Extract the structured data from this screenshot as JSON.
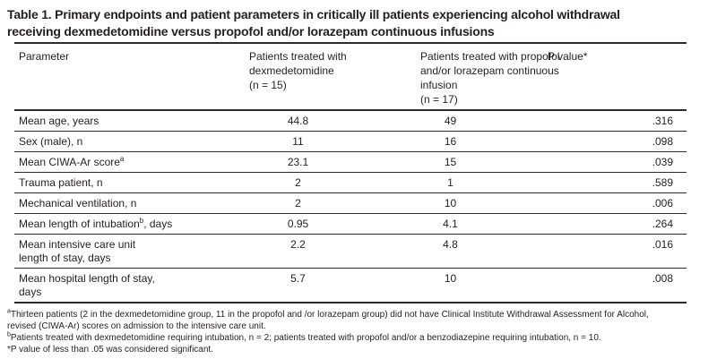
{
  "title": "Table 1. Primary endpoints and patient parameters in critically ill patients experiencing alcohol withdrawal\nreceiving dexmedetomidine versus propofol and/or lorazepam continuous infusions",
  "colors": {
    "text": "#231f20",
    "rule": "#2b2b2b",
    "background": "#ffffff"
  },
  "table": {
    "columns": [
      {
        "label": "Parameter"
      },
      {
        "label": "Patients treated with\ndexmedetomidine\n(n = 15)"
      },
      {
        "label": "Patients treated with propofol\nand/or lorazepam continuous\ninfusion\n(n = 17)"
      },
      {
        "label": "P value*"
      }
    ],
    "rows": [
      {
        "parameter": {
          "text": "Mean age, years",
          "sup": "",
          "suffix": ""
        },
        "dexmedetomidine": "44.8",
        "propofol_lorazepam": "49",
        "p_value": ".316"
      },
      {
        "parameter": {
          "text": "Sex (male), n",
          "sup": "",
          "suffix": ""
        },
        "dexmedetomidine": "11",
        "propofol_lorazepam": "16",
        "p_value": ".098"
      },
      {
        "parameter": {
          "text": "Mean CIWA-Ar score",
          "sup": "a",
          "suffix": ""
        },
        "dexmedetomidine": "23.1",
        "propofol_lorazepam": "15",
        "p_value": ".039"
      },
      {
        "parameter": {
          "text": "Trauma patient, n",
          "sup": "",
          "suffix": ""
        },
        "dexmedetomidine": "2",
        "propofol_lorazepam": "1",
        "p_value": ".589"
      },
      {
        "parameter": {
          "text": "Mechanical ventilation, n",
          "sup": "",
          "suffix": ""
        },
        "dexmedetomidine": "2",
        "propofol_lorazepam": "10",
        "p_value": ".006"
      },
      {
        "parameter": {
          "text": "Mean length of intubation",
          "sup": "b",
          "suffix": ", days"
        },
        "dexmedetomidine": "0.95",
        "propofol_lorazepam": "4.1",
        "p_value": ".264"
      },
      {
        "parameter": {
          "text": "Mean intensive care unit\nlength of stay, days",
          "sup": "",
          "suffix": ""
        },
        "dexmedetomidine": "2.2",
        "propofol_lorazepam": "4.8",
        "p_value": ".016"
      },
      {
        "parameter": {
          "text": "Mean hospital length of stay,\ndays",
          "sup": "",
          "suffix": ""
        },
        "dexmedetomidine": "5.7",
        "propofol_lorazepam": "10",
        "p_value": ".008"
      }
    ]
  },
  "footnotes": [
    {
      "marker": "a",
      "superscript": true,
      "text": "Thirteen patients (2 in the dexmedetomidine group, 11 in the propofol and /or lorazepam group) did not have Clinical Institute Withdrawal Assessment for Alcohol,\nrevised (CIWA-Ar) scores on admission to the intensive care unit."
    },
    {
      "marker": "b",
      "superscript": true,
      "text": "Patients treated with dexmedetomidine requiring intubation, n = 2; patients treated with propofol and/or a benzodiazepine requiring intubation, n = 10."
    },
    {
      "marker": "*",
      "superscript": false,
      "text": "P value of less than .05 was considered significant."
    }
  ]
}
